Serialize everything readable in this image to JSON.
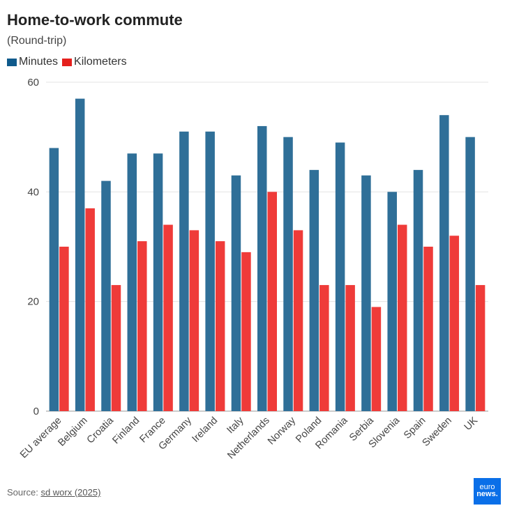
{
  "chart_data": {
    "type": "bar",
    "title": "Home-to-work commute",
    "subtitle": "(Round-trip)",
    "xlabel": "",
    "ylabel": "",
    "ylim": [
      0,
      60
    ],
    "yticks": [
      0,
      20,
      40,
      60
    ],
    "grid": true,
    "legend_placement": "top-left",
    "categories": [
      "EU average",
      "Belgium",
      "Croatia",
      "Finland",
      "France",
      "Germany",
      "Ireland",
      "Italy",
      "Netherlands",
      "Norway",
      "Poland",
      "Romania",
      "Serbia",
      "Slovenia",
      "Spain",
      "Sweden",
      "UK"
    ],
    "series": [
      {
        "name": "Minutes",
        "color": "#2f6f98",
        "values": [
          48,
          57,
          42,
          47,
          47,
          51,
          51,
          43,
          52,
          50,
          44,
          49,
          43,
          40,
          44,
          54,
          50
        ]
      },
      {
        "name": "Kilometers",
        "color": "#ef3b39",
        "values": [
          30,
          37,
          23,
          31,
          34,
          33,
          31,
          29,
          40,
          33,
          23,
          23,
          19,
          34,
          30,
          32,
          23
        ]
      }
    ]
  },
  "legend_colors": [
    "#0f5a8c",
    "#e5201d"
  ],
  "footer": {
    "source_label": "Source:",
    "source_link": "sd worx (2025)",
    "logo_top": "euro",
    "logo_bottom": "news."
  }
}
